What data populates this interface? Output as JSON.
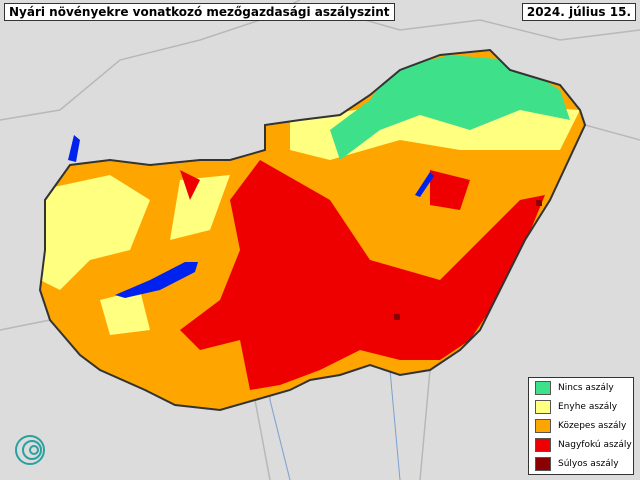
{
  "header": {
    "title": "Nyári növényekre vonatkozó mezőgazdasági aszályszint",
    "date": "2024. július 15."
  },
  "legend": {
    "items": [
      {
        "label": "Nincs aszály",
        "color": "#3fe08a"
      },
      {
        "label": "Enyhe aszály",
        "color": "#ffff80"
      },
      {
        "label": "Közepes aszály",
        "color": "#ffa500"
      },
      {
        "label": "Nagyfokú aszály",
        "color": "#ee0000"
      },
      {
        "label": "Súlyos aszály",
        "color": "#8b0000"
      }
    ]
  }
}
